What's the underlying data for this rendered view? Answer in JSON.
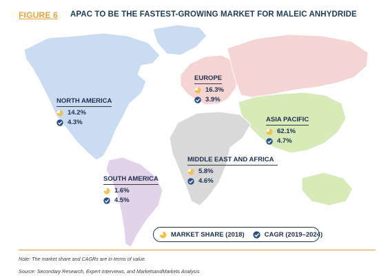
{
  "figure": {
    "label": "FIGURE 6",
    "title": "APAC TO BE THE FASTEST-GROWING MARKET FOR MALEIC ANHYDRIDE"
  },
  "colors": {
    "north_america": "#c9dcf2",
    "south_america": "#e3d3e8",
    "europe": "#f5d4d4",
    "asia_pacific": "#d7eab8",
    "middle_east_africa": "#d9d9d9",
    "pie_yellow": "#f5c04a",
    "check_blue": "#2b4f86",
    "title": "#1f3b5a",
    "figure_label": "#e8a33c"
  },
  "chart_data": {
    "type": "map",
    "title": "APAC TO BE THE FASTEST-GROWING MARKET FOR MALEIC ANHYDRIDE",
    "legend": [
      "MARKET SHARE (2018)",
      "CAGR (2019–2024)"
    ],
    "regions": [
      {
        "name": "NORTH AMERICA",
        "market_share": "14.2%",
        "cagr": "4.3%"
      },
      {
        "name": "EUROPE",
        "market_share": "16.3%",
        "cagr": "3.9%"
      },
      {
        "name": "ASIA PACIFIC",
        "market_share": "62.1%",
        "cagr": "4.7%"
      },
      {
        "name": "MIDDLE EAST AND AFRICA",
        "market_share": "5.8%",
        "cagr": "4.6%"
      },
      {
        "name": "SOUTH AMERICA",
        "market_share": "1.6%",
        "cagr": "4.5%"
      }
    ]
  },
  "legend": {
    "market_share_label": "MARKET SHARE (2018)",
    "cagr_label": "CAGR (2019–2024)",
    "market_share_icon": "pie-chart-icon",
    "cagr_icon": "growth-check-icon"
  },
  "footer": {
    "note": "Note: The market share and CAGRs are in terms of value.",
    "source": "Source: Secondary Research, Expert Interviews, and MarketsandMarkets Analysis"
  }
}
